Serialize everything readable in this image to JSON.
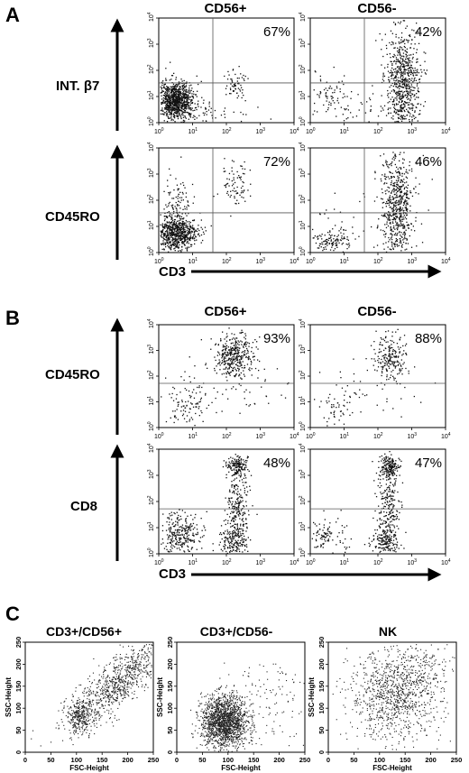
{
  "panels": {
    "a": "A",
    "b": "B",
    "c": "C"
  },
  "top_labels": {
    "cd56pos": "CD56+",
    "cd56neg": "CD56-"
  },
  "row_labels": {
    "int_b7": "INT. β7",
    "cd45ro": "CD45RO",
    "cd8": "CD8"
  },
  "axis": {
    "x_top": "CD3"
  },
  "ticks": {
    "base": "10",
    "exps": [
      "0",
      "1",
      "2",
      "3",
      "4"
    ]
  },
  "scatter_axes": {
    "x": "FSC-Height",
    "y": "SSC-Height",
    "ticks": [
      "0",
      "50",
      "100",
      "150",
      "200",
      "250"
    ]
  },
  "scatter_titles": [
    "CD3+/CD56+",
    "CD3+/CD56-",
    "NK"
  ],
  "chart_data": [
    {
      "type": "scatter",
      "panel": "A",
      "row": "INT. β7",
      "column": "CD56+",
      "x_scale": "log",
      "y_scale": "log",
      "xlim": [
        1,
        10000
      ],
      "ylim": [
        1,
        10000
      ],
      "annotation": "67%"
    },
    {
      "type": "scatter",
      "panel": "A",
      "row": "INT. β7",
      "column": "CD56-",
      "x_scale": "log",
      "y_scale": "log",
      "xlim": [
        1,
        10000
      ],
      "ylim": [
        1,
        10000
      ],
      "annotation": "42%"
    },
    {
      "type": "scatter",
      "panel": "A",
      "row": "CD45RO",
      "column": "CD56+",
      "x_scale": "log",
      "y_scale": "log",
      "xlim": [
        1,
        10000
      ],
      "ylim": [
        1,
        10000
      ],
      "annotation": "72%"
    },
    {
      "type": "scatter",
      "panel": "A",
      "row": "CD45RO",
      "column": "CD56-",
      "x_scale": "log",
      "y_scale": "log",
      "xlim": [
        1,
        10000
      ],
      "ylim": [
        1,
        10000
      ],
      "annotation": "46%"
    },
    {
      "type": "scatter",
      "panel": "B",
      "row": "CD45RO",
      "column": "CD56+",
      "x_scale": "log",
      "y_scale": "log",
      "xlim": [
        1,
        10000
      ],
      "ylim": [
        1,
        10000
      ],
      "annotation": "93%"
    },
    {
      "type": "scatter",
      "panel": "B",
      "row": "CD45RO",
      "column": "CD56-",
      "x_scale": "log",
      "y_scale": "log",
      "xlim": [
        1,
        10000
      ],
      "ylim": [
        1,
        10000
      ],
      "annotation": "88%"
    },
    {
      "type": "scatter",
      "panel": "B",
      "row": "CD8",
      "column": "CD56+",
      "x_scale": "log",
      "y_scale": "log",
      "xlim": [
        1,
        10000
      ],
      "ylim": [
        1,
        10000
      ],
      "annotation": "48%"
    },
    {
      "type": "scatter",
      "panel": "B",
      "row": "CD8",
      "column": "CD56-",
      "x_scale": "log",
      "y_scale": "log",
      "xlim": [
        1,
        10000
      ],
      "ylim": [
        1,
        10000
      ],
      "annotation": "47%"
    },
    {
      "type": "scatter",
      "panel": "C",
      "title": "CD3+/CD56+",
      "xlabel": "FSC-Height",
      "ylabel": "SSC-Height",
      "xlim": [
        0,
        250
      ],
      "ylim": [
        0,
        250
      ]
    },
    {
      "type": "scatter",
      "panel": "C",
      "title": "CD3+/CD56-",
      "xlabel": "FSC-Height",
      "ylabel": "SSC-Height",
      "xlim": [
        0,
        250
      ],
      "ylim": [
        0,
        250
      ]
    },
    {
      "type": "scatter",
      "panel": "C",
      "title": "NK",
      "xlabel": "FSC-Height",
      "ylabel": "SSC-Height",
      "xlim": [
        0,
        250
      ],
      "ylim": [
        0,
        250
      ]
    }
  ]
}
